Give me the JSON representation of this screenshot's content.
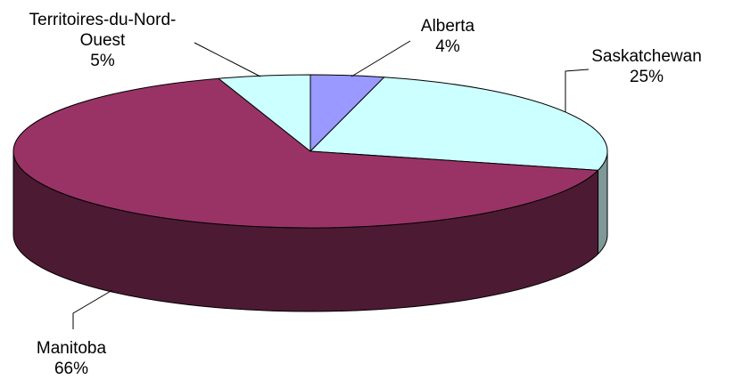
{
  "chart_data": {
    "type": "pie",
    "style": "3d",
    "title": "",
    "categories": [
      "Alberta",
      "Saskatchewan",
      "Manitoba",
      "Territoires-du-Nord-Ouest"
    ],
    "values": [
      4,
      25,
      66,
      5
    ],
    "percent_labels": [
      "4%",
      "25%",
      "66%",
      "5%"
    ],
    "colors": [
      "#9999FF",
      "#CCFFFF",
      "#993366",
      "#CCFFFF"
    ],
    "side_colors": [
      "#4D4D80",
      "#7F9999",
      "#4D1A33",
      "#7F9999"
    ],
    "legend": "none",
    "labels": {
      "alberta": {
        "name": "Alberta",
        "pct": "4%"
      },
      "saskatchewan": {
        "name": "Saskatchewan",
        "pct": "25%"
      },
      "manitoba": {
        "name": "Manitoba",
        "pct": "66%"
      },
      "territoires": {
        "name_line1": "Territoires-du-Nord-",
        "name_line2": "Ouest",
        "pct": "5%"
      }
    }
  }
}
